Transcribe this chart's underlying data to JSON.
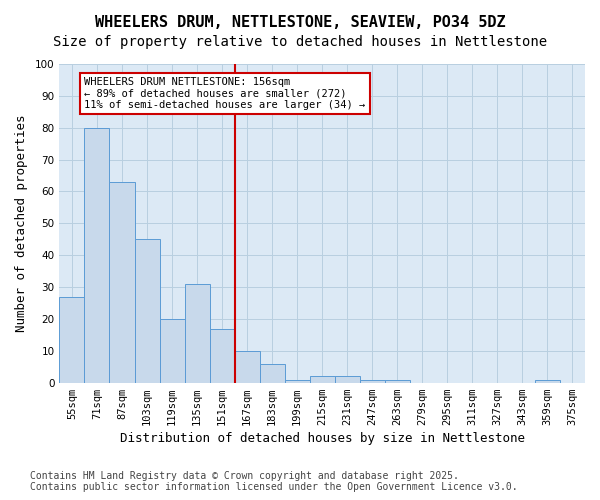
{
  "title1": "WHEELERS DRUM, NETTLESTONE, SEAVIEW, PO34 5DZ",
  "title2": "Size of property relative to detached houses in Nettlestone",
  "xlabel": "Distribution of detached houses by size in Nettlestone",
  "ylabel": "Number of detached properties",
  "categories": [
    "55sqm",
    "71sqm",
    "87sqm",
    "103sqm",
    "119sqm",
    "135sqm",
    "151sqm",
    "167sqm",
    "183sqm",
    "199sqm",
    "215sqm",
    "231sqm",
    "247sqm",
    "263sqm",
    "279sqm",
    "295sqm",
    "311sqm",
    "327sqm",
    "343sqm",
    "359sqm",
    "375sqm"
  ],
  "values": [
    27,
    80,
    63,
    45,
    20,
    31,
    17,
    10,
    6,
    1,
    2,
    2,
    1,
    1,
    0,
    0,
    0,
    0,
    0,
    1,
    0
  ],
  "bar_color": "#c8d9eb",
  "bar_edge_color": "#5b9bd5",
  "vline_pos": 6.5,
  "vline_color": "#cc0000",
  "vline_label_title": "WHEELERS DRUM NETTLESTONE: 156sqm",
  "vline_label_line1": "← 89% of detached houses are smaller (272)",
  "vline_label_line2": "11% of semi-detached houses are larger (34) →",
  "box_color": "#cc0000",
  "ylim": [
    0,
    100
  ],
  "yticks": [
    0,
    10,
    20,
    30,
    40,
    50,
    60,
    70,
    80,
    90,
    100
  ],
  "grid_color": "#b8cfe0",
  "bg_color": "#dce9f5",
  "footnote1": "Contains HM Land Registry data © Crown copyright and database right 2025.",
  "footnote2": "Contains public sector information licensed under the Open Government Licence v3.0.",
  "title_fontsize": 11,
  "subtitle_fontsize": 10,
  "axis_label_fontsize": 9,
  "tick_fontsize": 7.5,
  "footnote_fontsize": 7
}
